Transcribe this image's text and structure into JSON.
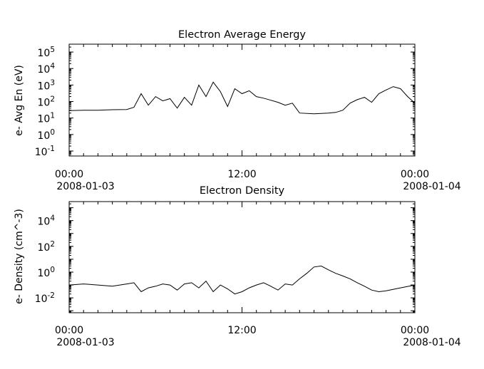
{
  "chart_data": [
    {
      "type": "line",
      "title": "Electron Average Energy",
      "ylabel": "e- Avg En (eV)",
      "xlabel": "",
      "y_scale": "log",
      "ylim": [
        0.05,
        300000
      ],
      "y_ticks": [
        {
          "value": 0.1,
          "base": "10",
          "exp": "-1"
        },
        {
          "value": 1,
          "base": "10",
          "exp": "0"
        },
        {
          "value": 10,
          "base": "10",
          "exp": "1"
        },
        {
          "value": 100,
          "base": "10",
          "exp": "2"
        },
        {
          "value": 1000,
          "base": "10",
          "exp": "3"
        },
        {
          "value": 10000,
          "base": "10",
          "exp": "4"
        },
        {
          "value": 100000,
          "base": "10",
          "exp": "5"
        }
      ],
      "x_ticks": [
        {
          "time": "2008-01-03T00:00",
          "label": "00:00",
          "date": "2008-01-03"
        },
        {
          "time": "2008-01-03T12:00",
          "label": "12:00",
          "date": ""
        },
        {
          "time": "2008-01-04T00:00",
          "label": "00:00",
          "date": "2008-01-04"
        }
      ],
      "xlim": [
        "2008-01-03T00:00",
        "2008-01-04T00:00"
      ],
      "grid": false,
      "legend": "none",
      "series": [
        {
          "x": [
            "2008-01-03T00:00",
            "2008-01-03T01:00",
            "2008-01-03T02:00",
            "2008-01-03T03:00",
            "2008-01-03T04:00",
            "2008-01-03T04:30",
            "2008-01-03T05:00",
            "2008-01-03T05:30",
            "2008-01-03T06:00",
            "2008-01-03T06:30",
            "2008-01-03T07:00",
            "2008-01-03T07:30",
            "2008-01-03T08:00",
            "2008-01-03T08:30",
            "2008-01-03T09:00",
            "2008-01-03T09:30",
            "2008-01-03T10:00",
            "2008-01-03T10:30",
            "2008-01-03T11:00",
            "2008-01-03T11:30",
            "2008-01-03T12:00",
            "2008-01-03T12:30",
            "2008-01-03T13:00",
            "2008-01-03T13:30",
            "2008-01-03T14:00",
            "2008-01-03T14:30",
            "2008-01-03T15:00",
            "2008-01-03T15:30",
            "2008-01-03T16:00",
            "2008-01-03T17:00",
            "2008-01-03T18:00",
            "2008-01-03T18:30",
            "2008-01-03T19:00",
            "2008-01-03T19:30",
            "2008-01-03T20:00",
            "2008-01-03T20:30",
            "2008-01-03T21:00",
            "2008-01-03T21:30",
            "2008-01-03T22:00",
            "2008-01-03T22:30",
            "2008-01-03T23:00",
            "2008-01-03T23:30",
            "2008-01-04T00:00"
          ],
          "y": [
            28,
            30,
            30,
            32,
            33,
            45,
            300,
            60,
            200,
            110,
            150,
            40,
            180,
            60,
            1000,
            200,
            1500,
            400,
            50,
            600,
            300,
            450,
            200,
            160,
            120,
            90,
            60,
            80,
            20,
            18,
            20,
            22,
            30,
            80,
            130,
            180,
            90,
            300,
            500,
            800,
            600,
            200,
            80
          ]
        }
      ]
    },
    {
      "type": "line",
      "title": "Electron Density",
      "ylabel": "e- Density (cm^-3)",
      "xlabel": "",
      "y_scale": "log",
      "ylim": [
        0.0007,
        300000
      ],
      "y_ticks": [
        {
          "value": 0.01,
          "base": "10",
          "exp": "-2"
        },
        {
          "value": 1,
          "base": "10",
          "exp": "0"
        },
        {
          "value": 100,
          "base": "10",
          "exp": "2"
        },
        {
          "value": 10000,
          "base": "10",
          "exp": "4"
        }
      ],
      "x_ticks": [
        {
          "time": "2008-01-03T00:00",
          "label": "00:00",
          "date": "2008-01-03"
        },
        {
          "time": "2008-01-03T12:00",
          "label": "12:00",
          "date": ""
        },
        {
          "time": "2008-01-04T00:00",
          "label": "00:00",
          "date": "2008-01-04"
        }
      ],
      "xlim": [
        "2008-01-03T00:00",
        "2008-01-04T00:00"
      ],
      "grid": false,
      "legend": "none",
      "series": [
        {
          "x": [
            "2008-01-03T00:00",
            "2008-01-03T01:00",
            "2008-01-03T02:00",
            "2008-01-03T03:00",
            "2008-01-03T04:00",
            "2008-01-03T04:30",
            "2008-01-03T05:00",
            "2008-01-03T05:30",
            "2008-01-03T06:00",
            "2008-01-03T06:30",
            "2008-01-03T07:00",
            "2008-01-03T07:30",
            "2008-01-03T08:00",
            "2008-01-03T08:30",
            "2008-01-03T09:00",
            "2008-01-03T09:30",
            "2008-01-03T10:00",
            "2008-01-03T10:30",
            "2008-01-03T11:00",
            "2008-01-03T11:30",
            "2008-01-03T12:00",
            "2008-01-03T12:30",
            "2008-01-03T13:00",
            "2008-01-03T13:30",
            "2008-01-03T14:00",
            "2008-01-03T14:30",
            "2008-01-03T15:00",
            "2008-01-03T15:30",
            "2008-01-03T16:00",
            "2008-01-03T16:30",
            "2008-01-03T17:00",
            "2008-01-03T17:30",
            "2008-01-03T18:00",
            "2008-01-03T18:30",
            "2008-01-03T19:00",
            "2008-01-03T19:30",
            "2008-01-03T20:00",
            "2008-01-03T20:30",
            "2008-01-03T21:00",
            "2008-01-03T21:30",
            "2008-01-03T22:00",
            "2008-01-03T23:00",
            "2008-01-04T00:00"
          ],
          "y": [
            0.1,
            0.12,
            0.1,
            0.08,
            0.12,
            0.15,
            0.03,
            0.06,
            0.08,
            0.12,
            0.1,
            0.04,
            0.12,
            0.15,
            0.06,
            0.2,
            0.03,
            0.1,
            0.05,
            0.02,
            0.03,
            0.06,
            0.1,
            0.15,
            0.08,
            0.04,
            0.12,
            0.1,
            0.3,
            0.8,
            2.5,
            3,
            1.5,
            0.8,
            0.5,
            0.3,
            0.15,
            0.08,
            0.04,
            0.03,
            0.035,
            0.06,
            0.1
          ]
        }
      ]
    }
  ]
}
